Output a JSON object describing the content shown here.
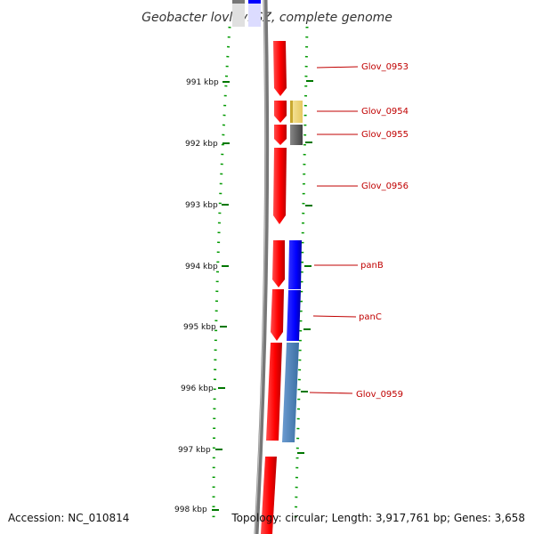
{
  "title": "Geobacter lovleyi SZ, complete genome",
  "footer": {
    "accession": "Accession: NC_010814",
    "summary": "Topology: circular; Length: 3,917,761 bp; Genes: 3,658"
  },
  "scale_ticks": [
    {
      "label": "991 kbp"
    },
    {
      "label": "992 kbp"
    },
    {
      "label": "993 kbp"
    },
    {
      "label": "994 kbp"
    },
    {
      "label": "995 kbp"
    },
    {
      "label": "996 kbp"
    },
    {
      "label": "997 kbp"
    },
    {
      "label": "998 kbp"
    }
  ],
  "gene_labels": [
    {
      "id": "glov-0953",
      "text": "Glov_0953"
    },
    {
      "id": "glov-0954",
      "text": "Glov_0954"
    },
    {
      "id": "glov-0955",
      "text": "Glov_0955"
    },
    {
      "id": "glov-0956",
      "text": "Glov_0956"
    },
    {
      "id": "panb",
      "text": "panB"
    },
    {
      "id": "panc",
      "text": "panC"
    },
    {
      "id": "glov-0959",
      "text": "Glov_0959"
    }
  ],
  "colors": {
    "gene_red": "#ff0000",
    "cog_blue": "#0000ff",
    "cog_steel": "#4a7fb5",
    "cog_yellow": "#f0dc82",
    "cog_gray": "#666666",
    "backbone": "#808080",
    "tick_green": "#007700",
    "label_red": "#c00000"
  }
}
